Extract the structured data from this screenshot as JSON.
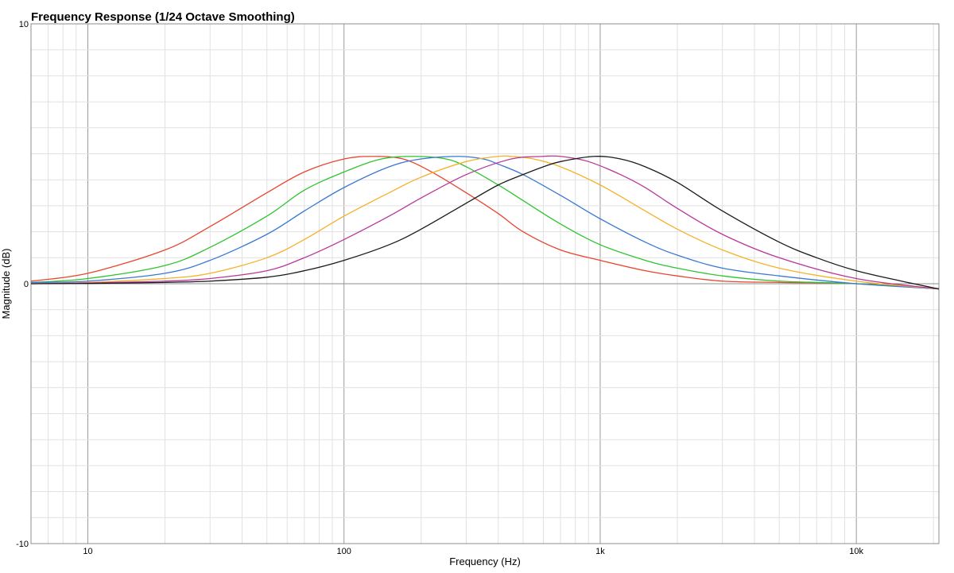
{
  "chart_data": {
    "type": "line",
    "title": "Frequency Response (1/24 Octave Smoothing)",
    "xlabel": "Frequency (Hz)",
    "ylabel": "Magnitude (dB)",
    "x_scale": "log",
    "xlim": [
      6,
      21000
    ],
    "ylim": [
      -10,
      10
    ],
    "x_ticks": [
      {
        "value": 10,
        "label": "10"
      },
      {
        "value": 100,
        "label": "100"
      },
      {
        "value": 1000,
        "label": "1k"
      },
      {
        "value": 10000,
        "label": "10k"
      }
    ],
    "y_ticks": [
      {
        "value": 10,
        "label": "10"
      },
      {
        "value": 0,
        "label": "0"
      },
      {
        "value": -10,
        "label": "-10"
      }
    ],
    "grid": true,
    "legend": "none",
    "series": [
      {
        "color": "#e8452f",
        "x": [
          6,
          10,
          20,
          30,
          50,
          70,
          100,
          130,
          170,
          220,
          300,
          400,
          500,
          700,
          1000,
          1500,
          2000,
          3000,
          5000,
          10000,
          21000
        ],
        "y": [
          0.1,
          0.4,
          1.3,
          2.2,
          3.5,
          4.3,
          4.8,
          4.9,
          4.8,
          4.3,
          3.5,
          2.7,
          2.0,
          1.3,
          0.9,
          0.5,
          0.3,
          0.1,
          0.05,
          0,
          -0.2
        ]
      },
      {
        "color": "#2ec42e",
        "x": [
          6,
          10,
          20,
          30,
          50,
          70,
          100,
          140,
          190,
          250,
          300,
          400,
          500,
          700,
          1000,
          1500,
          2000,
          3000,
          5000,
          10000,
          21000
        ],
        "y": [
          0.05,
          0.2,
          0.7,
          1.4,
          2.6,
          3.6,
          4.3,
          4.8,
          4.9,
          4.8,
          4.5,
          3.8,
          3.2,
          2.3,
          1.5,
          0.9,
          0.6,
          0.3,
          0.1,
          0,
          -0.2
        ]
      },
      {
        "color": "#3a78d4",
        "x": [
          6,
          10,
          20,
          30,
          50,
          70,
          100,
          150,
          200,
          280,
          350,
          400,
          500,
          700,
          1000,
          1500,
          2000,
          3000,
          5000,
          10000,
          21000
        ],
        "y": [
          0.05,
          0.1,
          0.4,
          0.9,
          1.9,
          2.8,
          3.7,
          4.5,
          4.8,
          4.9,
          4.8,
          4.6,
          4.2,
          3.4,
          2.5,
          1.6,
          1.1,
          0.6,
          0.3,
          0,
          -0.2
        ]
      },
      {
        "color": "#f5b12a",
        "x": [
          6,
          10,
          20,
          30,
          50,
          70,
          100,
          150,
          200,
          300,
          400,
          450,
          550,
          700,
          1000,
          1500,
          2000,
          3000,
          5000,
          10000,
          21000
        ],
        "y": [
          0,
          0.05,
          0.2,
          0.4,
          1.0,
          1.7,
          2.6,
          3.5,
          4.1,
          4.7,
          4.9,
          4.9,
          4.8,
          4.5,
          3.8,
          2.8,
          2.1,
          1.3,
          0.6,
          0.1,
          -0.2
        ]
      },
      {
        "color": "#b8389a",
        "x": [
          6,
          10,
          20,
          30,
          50,
          70,
          100,
          150,
          200,
          300,
          450,
          600,
          700,
          900,
          1200,
          1500,
          2000,
          3000,
          5000,
          10000,
          21000
        ],
        "y": [
          0,
          0.03,
          0.1,
          0.2,
          0.5,
          1.0,
          1.7,
          2.6,
          3.3,
          4.2,
          4.8,
          4.9,
          4.9,
          4.7,
          4.2,
          3.7,
          2.9,
          1.9,
          1.0,
          0.2,
          -0.2
        ]
      },
      {
        "color": "#1a1a1a",
        "x": [
          6,
          10,
          20,
          30,
          50,
          70,
          100,
          150,
          200,
          300,
          400,
          500,
          600,
          700,
          950,
          1200,
          1500,
          2000,
          3000,
          5000,
          7000,
          10000,
          15000,
          21000
        ],
        "y": [
          0,
          0.01,
          0.05,
          0.1,
          0.25,
          0.5,
          0.9,
          1.5,
          2.1,
          3.1,
          3.8,
          4.2,
          4.5,
          4.7,
          4.9,
          4.8,
          4.5,
          3.9,
          2.8,
          1.6,
          1.0,
          0.5,
          0.1,
          -0.2
        ]
      }
    ]
  }
}
